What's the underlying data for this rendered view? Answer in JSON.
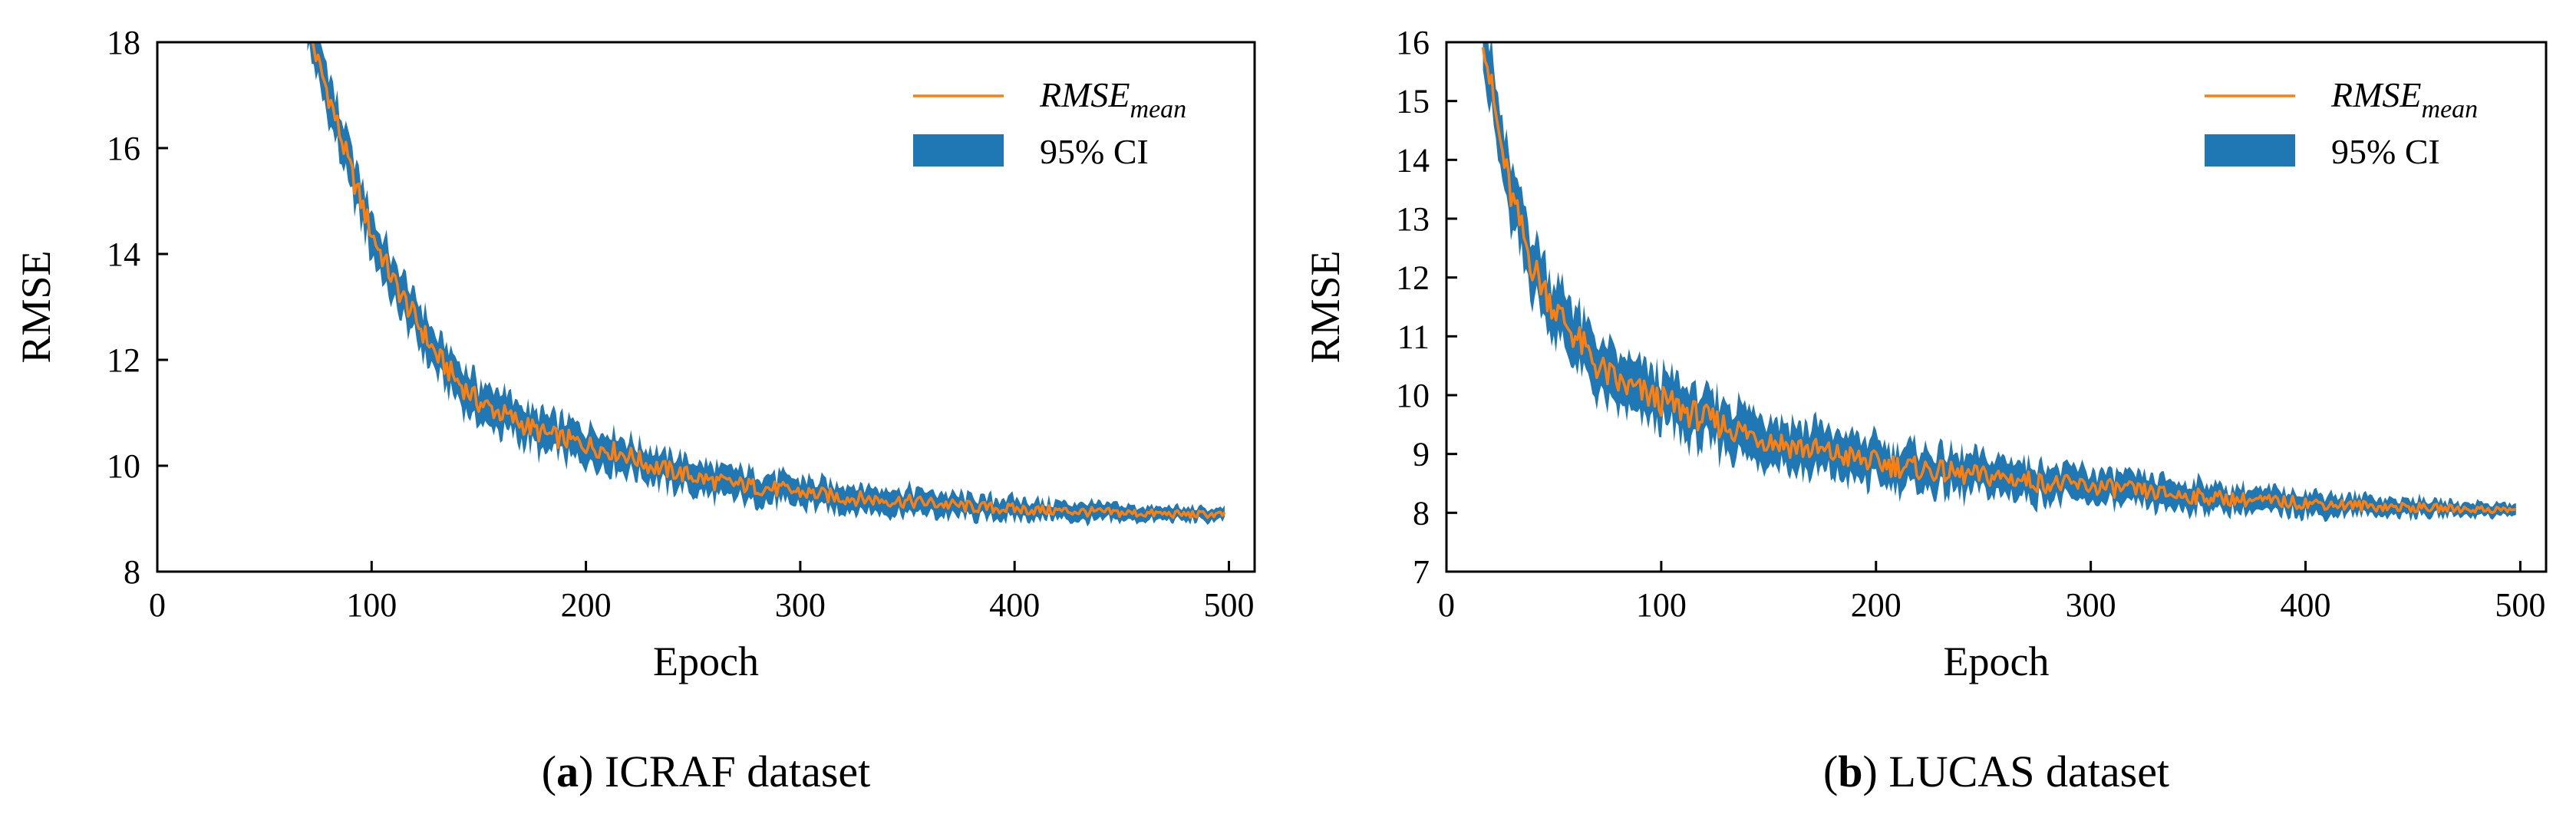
{
  "colors": {
    "mean_line": "#ff7f0e",
    "ci_band": "#1f77b4",
    "axis": "#000000"
  },
  "chart_data": [
    {
      "type": "line",
      "panel_id": "a",
      "caption": {
        "label": "a",
        "text": "ICRAF dataset"
      },
      "xlabel": "Epoch",
      "ylabel": "RMSE",
      "xlim": [
        0,
        512
      ],
      "ylim": [
        8,
        18
      ],
      "xticks": [
        0,
        100,
        200,
        300,
        400,
        500
      ],
      "yticks": [
        8,
        10,
        12,
        14,
        16,
        18
      ],
      "grid": false,
      "legend": {
        "placement": "top-right",
        "line_label_main": "RMSE",
        "line_label_sub": "mean",
        "band_label": "95% CI"
      },
      "series": [
        {
          "name": "RMSE_mean",
          "kind": "line",
          "x": [
            70,
            75,
            80,
            90,
            100,
            110,
            120,
            130,
            140,
            150,
            160,
            170,
            180,
            190,
            200,
            210,
            220,
            230,
            240,
            250,
            260,
            270,
            280,
            290,
            300,
            320,
            340,
            360,
            380,
            400,
            420,
            440,
            460,
            480,
            498
          ],
          "values": [
            18.4,
            17.6,
            17.0,
            15.6,
            14.4,
            13.5,
            12.8,
            12.1,
            11.6,
            11.2,
            11.0,
            10.8,
            10.6,
            10.5,
            10.4,
            10.3,
            10.2,
            10.0,
            9.9,
            9.8,
            9.7,
            9.65,
            9.6,
            9.55,
            9.5,
            9.4,
            9.35,
            9.3,
            9.22,
            9.18,
            9.15,
            9.12,
            9.1,
            9.08,
            9.08
          ]
        },
        {
          "name": "95% CI",
          "kind": "band",
          "halfwidth_start": 0.45,
          "halfwidth_end": 0.12
        }
      ]
    },
    {
      "type": "line",
      "panel_id": "b",
      "caption": {
        "label": "b",
        "text": "LUCAS dataset"
      },
      "xlabel": "Epoch",
      "ylabel": "RMSE",
      "xlim": [
        0,
        512
      ],
      "ylim": [
        7,
        16
      ],
      "xticks": [
        0,
        100,
        200,
        300,
        400,
        500
      ],
      "yticks": [
        7,
        8,
        9,
        10,
        11,
        12,
        13,
        14,
        15,
        16
      ],
      "grid": false,
      "legend": {
        "placement": "top-right",
        "line_label_main": "RMSE",
        "line_label_sub": "mean",
        "band_label": "95% CI"
      },
      "series": [
        {
          "name": "RMSE_mean",
          "kind": "line",
          "x": [
            17,
            20,
            25,
            30,
            40,
            50,
            60,
            70,
            80,
            100,
            120,
            140,
            160,
            180,
            200,
            220,
            240,
            260,
            280,
            300,
            320,
            340,
            360,
            380,
            400,
            420,
            440,
            460,
            480,
            498
          ],
          "values": [
            16.2,
            15.4,
            14.3,
            13.4,
            12.2,
            11.5,
            11.0,
            10.5,
            10.2,
            9.9,
            9.6,
            9.35,
            9.15,
            9.0,
            8.85,
            8.75,
            8.65,
            8.6,
            8.5,
            8.45,
            8.38,
            8.3,
            8.25,
            8.2,
            8.17,
            8.13,
            8.1,
            8.08,
            8.06,
            8.05
          ]
        },
        {
          "name": "95% CI",
          "kind": "band",
          "halfwidth_start": 0.55,
          "halfwidth_end": 0.1
        }
      ]
    }
  ]
}
